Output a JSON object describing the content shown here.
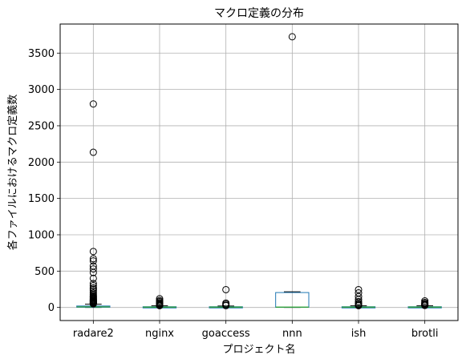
{
  "chart_data": {
    "type": "boxplot",
    "title": "マクロ定義の分布",
    "xlabel": "プロジェクト名",
    "ylabel": "各ファイルにおけるマクロ定義数",
    "categories": [
      "radare2",
      "nginx",
      "goaccess",
      "nnn",
      "ish",
      "brotli"
    ],
    "ylim": [
      -180,
      3900
    ],
    "yticks": [
      0,
      500,
      1000,
      1500,
      2000,
      2500,
      3000,
      3500
    ],
    "ytick_labels": [
      "0",
      "500",
      "1000",
      "1500",
      "2000",
      "2500",
      "3000",
      "3500"
    ],
    "grid": true,
    "colors": {
      "box": "#1f77b4",
      "median": "#2ca02c",
      "whisker": "#000000",
      "flier": "#000000",
      "grid": "#b0b0b0"
    },
    "boxes": [
      {
        "name": "radare2",
        "min": 0,
        "q1": 3,
        "median": 8,
        "q3": 20,
        "max": 45,
        "fliers": [
          2800,
          2135,
          770,
          670,
          640,
          570,
          530,
          480,
          400,
          330,
          300,
          270,
          250,
          230,
          200,
          180,
          160,
          150,
          140,
          130,
          120,
          110,
          100,
          95,
          90,
          85,
          80,
          75,
          70,
          65,
          60,
          55,
          50
        ]
      },
      {
        "name": "nginx",
        "min": 0,
        "q1": 2,
        "median": 5,
        "q3": 10,
        "max": 22,
        "fliers": [
          120,
          95,
          80,
          65,
          55,
          45,
          40,
          35,
          30,
          28,
          25
        ]
      },
      {
        "name": "goaccess",
        "min": 0,
        "q1": 2,
        "median": 5,
        "q3": 10,
        "max": 20,
        "fliers": [
          245,
          60,
          45,
          30,
          25
        ]
      },
      {
        "name": "nnn",
        "min": 0,
        "q1": 2,
        "median": 5,
        "q3": 205,
        "max": 215,
        "fliers": [
          3725
        ]
      },
      {
        "name": "ish",
        "min": 0,
        "q1": 2,
        "median": 5,
        "q3": 10,
        "max": 22,
        "fliers": [
          245,
          200,
          150,
          110,
          80,
          60,
          45,
          35,
          30,
          25
        ]
      },
      {
        "name": "brotli",
        "min": 0,
        "q1": 2,
        "median": 5,
        "q3": 10,
        "max": 22,
        "fliers": [
          90,
          70,
          55,
          45,
          35,
          30,
          28
        ]
      }
    ]
  }
}
